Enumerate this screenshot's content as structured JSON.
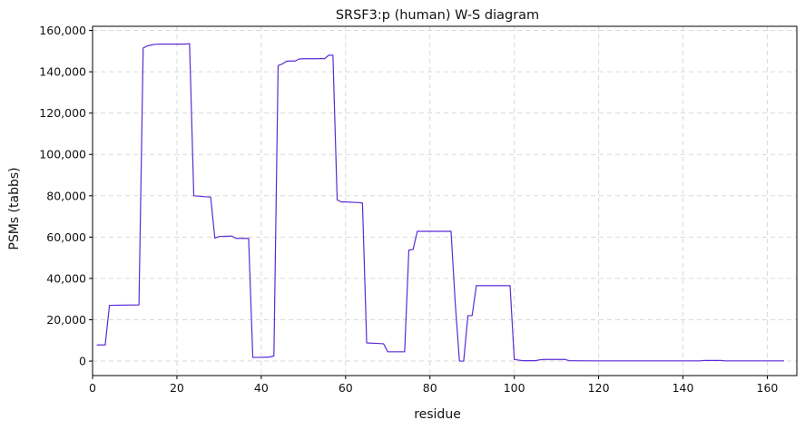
{
  "chart_data": {
    "type": "line",
    "title": "SRSF3:p (human) W-S diagram",
    "xlabel": "residue",
    "ylabel": "PSMs (tabbs)",
    "xlim": [
      0,
      167
    ],
    "ylim": [
      -7000,
      162000
    ],
    "x_ticks": [
      0,
      20,
      40,
      60,
      80,
      100,
      120,
      140,
      160
    ],
    "y_ticks": [
      0,
      20000,
      40000,
      60000,
      80000,
      100000,
      120000,
      140000,
      160000
    ],
    "y_tick_labels": [
      "0",
      "20,000",
      "40,000",
      "60,000",
      "80,000",
      "100,000",
      "120,000",
      "140,000",
      "160,000"
    ],
    "grid": true,
    "line_color": "#5b2bd6",
    "series": [
      {
        "x": [
          1,
          3,
          4,
          11,
          12,
          13,
          14,
          15,
          16,
          20,
          22,
          23,
          24,
          27,
          28,
          29,
          30,
          33,
          34,
          35,
          37,
          38,
          40,
          41,
          42,
          43,
          44,
          45,
          46,
          47,
          48,
          49,
          50,
          51,
          52,
          53,
          54,
          55,
          56,
          57,
          58,
          59,
          60,
          63,
          64,
          65,
          68,
          69,
          70,
          74,
          75,
          76,
          77,
          78,
          80,
          85,
          86,
          87,
          88,
          89,
          90,
          91,
          97,
          98,
          99,
          100,
          101,
          102,
          105,
          106,
          107,
          112,
          113,
          119,
          120,
          127,
          144,
          145,
          149,
          150,
          164
        ],
        "y": [
          7800,
          7800,
          27000,
          27200,
          151500,
          152500,
          153000,
          153300,
          153400,
          153400,
          153400,
          153600,
          80000,
          79500,
          79400,
          59500,
          60300,
          60500,
          59400,
          59400,
          59400,
          1800,
          1800,
          1900,
          2000,
          2500,
          143000,
          143800,
          145100,
          145200,
          145200,
          146200,
          146300,
          146300,
          146300,
          146300,
          146400,
          146300,
          148000,
          148000,
          78000,
          77000,
          77000,
          76700,
          76500,
          8800,
          8500,
          8400,
          4500,
          4500,
          53700,
          54000,
          62800,
          62800,
          62800,
          62800,
          28000,
          0,
          0,
          22000,
          22000,
          36500,
          36500,
          36500,
          36500,
          800,
          500,
          200,
          200,
          600,
          800,
          800,
          200,
          100,
          100,
          100,
          100,
          300,
          300,
          100,
          100
        ]
      }
    ]
  }
}
